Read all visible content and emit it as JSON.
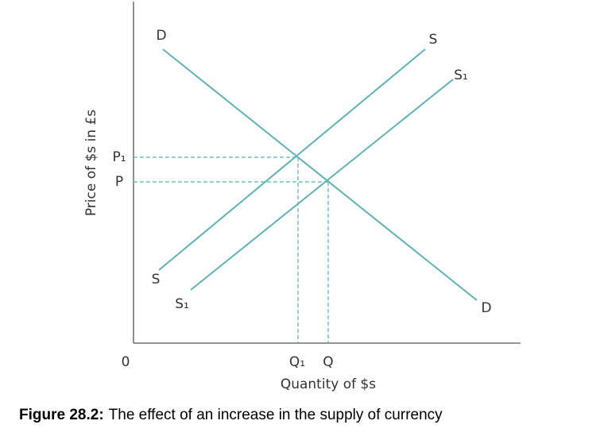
{
  "axes": {
    "origin": "0",
    "x_label": "Quantity of $s",
    "y_label": "Price of $s in £s"
  },
  "curves": {
    "demand": {
      "top_label": "D",
      "bottom_label": "D"
    },
    "supply": {
      "top_label": "S",
      "bottom_label": "S"
    },
    "new_supply": {
      "top_label": "S₁",
      "bottom_label": "S₁"
    }
  },
  "prices": [
    "P₁",
    "P"
  ],
  "quantities": [
    "Q₁",
    "Q"
  ],
  "caption": {
    "number": "Figure 28.2:",
    "text": "The effect of an increase in the supply of currency"
  }
}
